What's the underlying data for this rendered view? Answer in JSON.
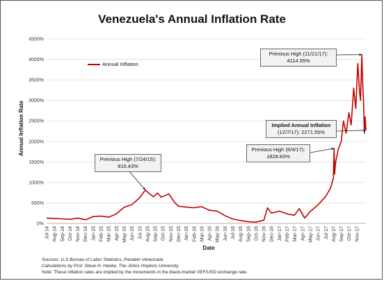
{
  "chart_data": {
    "type": "line",
    "title": "Venezuela's Annual Inflation Rate",
    "xlabel": "Date",
    "ylabel": "Annual Inflation Rate",
    "ylim": [
      0,
      4500
    ],
    "yticks": [
      "0%",
      "500%",
      "1000%",
      "1500%",
      "2000%",
      "2500%",
      "3000%",
      "3500%",
      "4000%",
      "4500%"
    ],
    "xticks": [
      "Jul-14",
      "Aug-14",
      "Sep-14",
      "Oct-14",
      "Nov-14",
      "Dec-14",
      "Jan-15",
      "Feb-15",
      "Mar-15",
      "Apr-15",
      "May-15",
      "Jun-15",
      "Jul-15",
      "Aug-15",
      "Sep-15",
      "Oct-15",
      "Nov-15",
      "Dec-15",
      "Jan-16",
      "Feb-16",
      "Mar-16",
      "Apr-16",
      "May-16",
      "Jun-16",
      "Jul-16",
      "Aug-16",
      "Sep-16",
      "Oct-16",
      "Nov-16",
      "Dec-16",
      "Jan-17",
      "Feb-17",
      "Mar-17",
      "Apr-17",
      "May-17",
      "Jun-17",
      "Jul-17",
      "Aug-17",
      "Sep-17",
      "Oct-17",
      "Nov-17"
    ],
    "grid": true,
    "legend": "top-left",
    "series": [
      {
        "name": "Annual Inflation",
        "color": "#c00000",
        "x": [
          "2014-07-01",
          "2014-08-01",
          "2014-09-01",
          "2014-10-01",
          "2014-11-01",
          "2014-12-01",
          "2015-01-01",
          "2015-02-01",
          "2015-03-01",
          "2015-04-01",
          "2015-05-01",
          "2015-06-01",
          "2015-07-01",
          "2015-07-24",
          "2015-08-10",
          "2015-08-25",
          "2015-09-10",
          "2015-09-25",
          "2015-10-10",
          "2015-10-25",
          "2015-11-15",
          "2015-12-01",
          "2016-01-01",
          "2016-02-01",
          "2016-03-01",
          "2016-04-01",
          "2016-05-01",
          "2016-06-01",
          "2016-07-01",
          "2016-08-01",
          "2016-09-01",
          "2016-10-01",
          "2016-11-01",
          "2016-11-15",
          "2016-12-01",
          "2016-12-20",
          "2017-01-01",
          "2017-02-01",
          "2017-03-01",
          "2017-03-20",
          "2017-04-10",
          "2017-05-01",
          "2017-06-01",
          "2017-07-01",
          "2017-07-20",
          "2017-08-01",
          "2017-08-04",
          "2017-08-06",
          "2017-08-10",
          "2017-08-20",
          "2017-09-01",
          "2017-09-10",
          "2017-09-20",
          "2017-10-01",
          "2017-10-10",
          "2017-10-20",
          "2017-10-28",
          "2017-11-05",
          "2017-11-12",
          "2017-11-16",
          "2017-11-21",
          "2017-11-24",
          "2017-11-28",
          "2017-12-01",
          "2017-12-04",
          "2017-12-07"
        ],
        "y": [
          130,
          120,
          110,
          100,
          130,
          90,
          170,
          180,
          150,
          230,
          390,
          460,
          620,
          816,
          720,
          650,
          740,
          640,
          680,
          720,
          520,
          420,
          400,
          380,
          410,
          320,
          300,
          190,
          110,
          70,
          40,
          30,
          80,
          380,
          250,
          280,
          300,
          230,
          200,
          360,
          130,
          280,
          450,
          650,
          850,
          1100,
          1829,
          1200,
          1500,
          1800,
          2000,
          2500,
          2200,
          2700,
          2400,
          3300,
          2800,
          3900,
          3200,
          3000,
          4115,
          3500,
          2900,
          2200,
          2600,
          2272
        ]
      }
    ],
    "annotations": [
      {
        "lines": [
          "Previous High (11/21/17):",
          "4114.55%"
        ]
      },
      {
        "lines": [
          "Implied Annual Inflation",
          "(12/7/17): 2271.55%"
        ]
      },
      {
        "lines": [
          "Previous High (8/4/17):",
          "1828.83%"
        ]
      },
      {
        "lines": [
          "Previous High (7/24/15):",
          "816.43%"
        ]
      }
    ]
  },
  "notes": {
    "sources": "Sources: U.S Bureau of Labor Statistics, Paralelo Venezuela",
    "calc": "Calculations by Prof. Steve H. Hanke, The Johns Hopkins University.",
    "note": "Note: These inflation rates are implied by the movements in the black-market VEF/USD exchange rate."
  }
}
